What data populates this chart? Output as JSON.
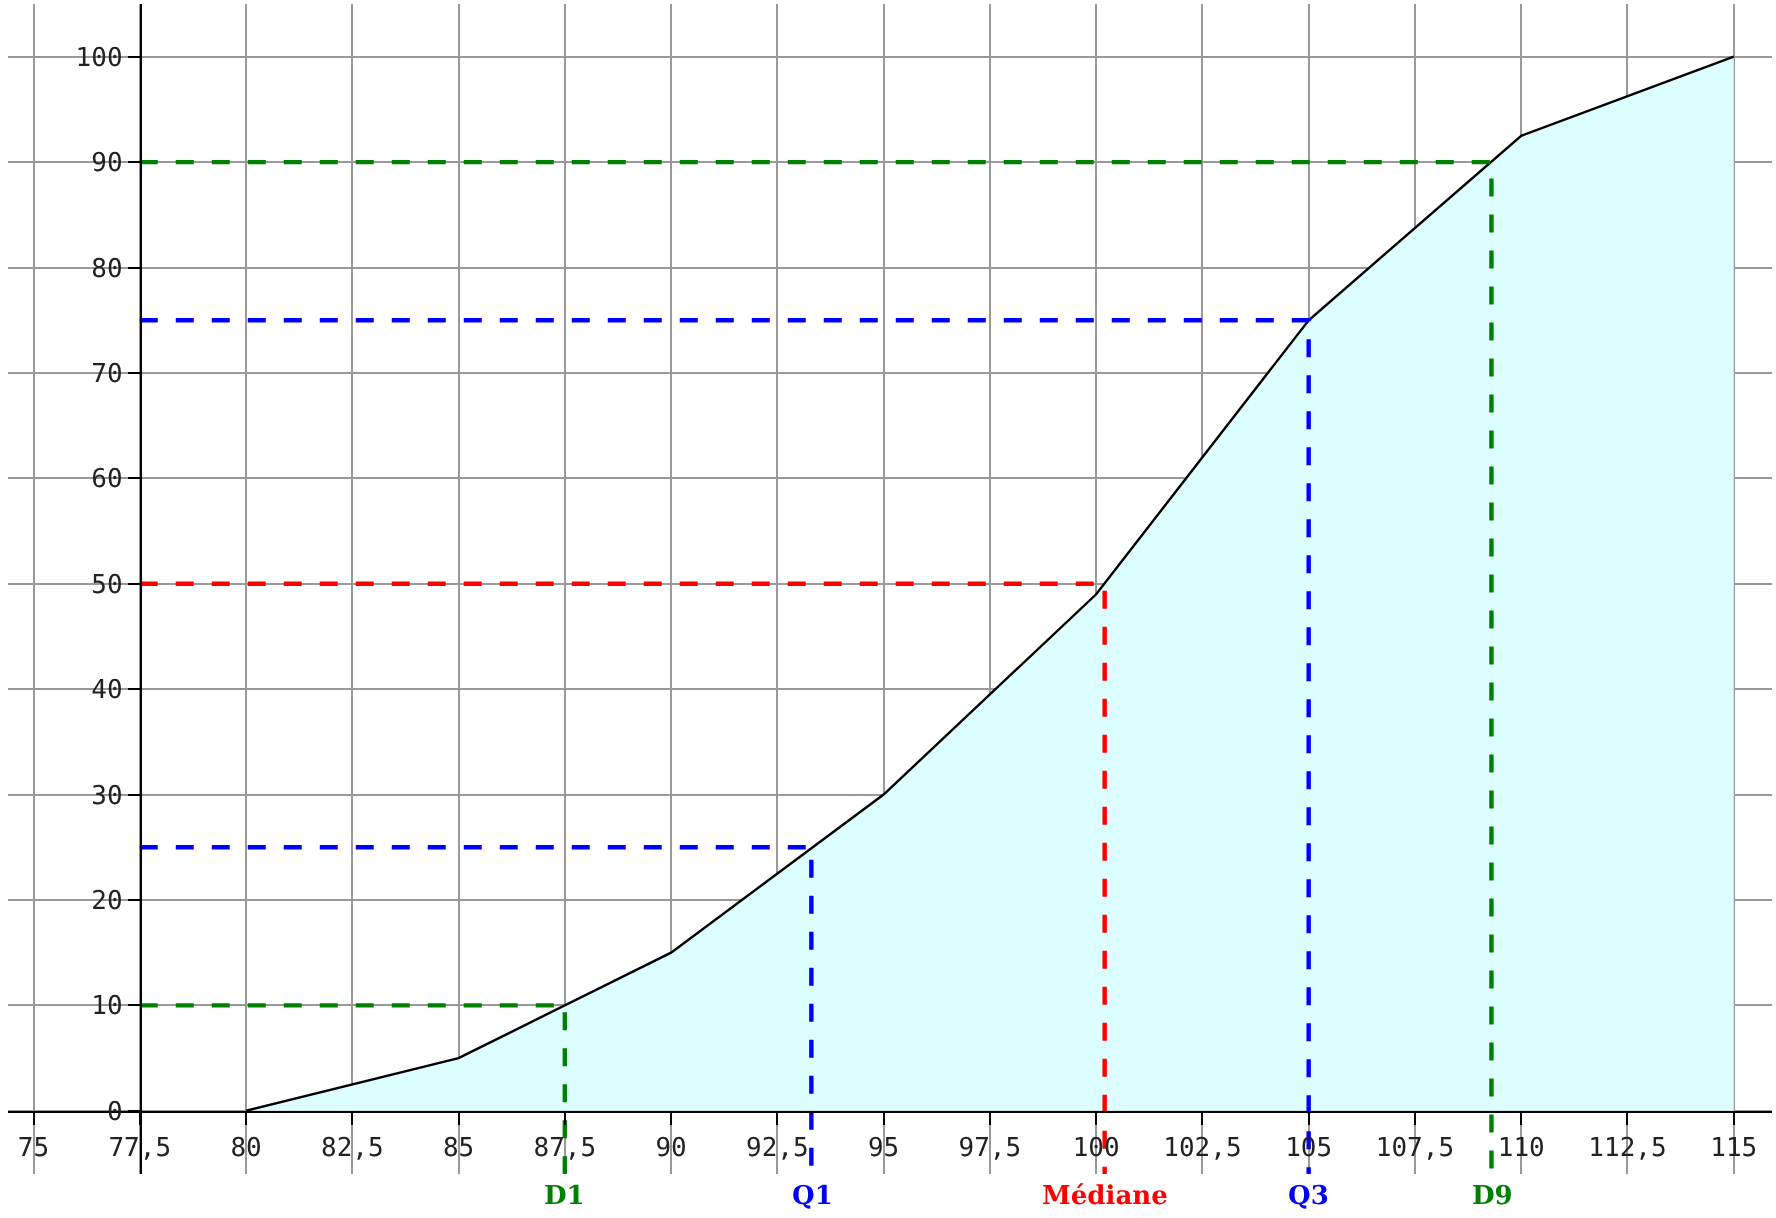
{
  "chart_data": {
    "type": "area",
    "x": [
      80,
      85,
      90,
      95,
      100,
      105,
      110,
      115
    ],
    "series": [
      {
        "color": "#dcfefe",
        "values": [
          0,
          5,
          15,
          30,
          49,
          75,
          92.5,
          100
        ]
      },
      {
        "type": "line",
        "name": "D1",
        "color": "#008000",
        "line_style": "dashed",
        "x": [
          77.5,
          87.5,
          87.5
        ],
        "values": [
          10,
          10,
          -6
        ]
      },
      {
        "type": "line",
        "name": "Q1",
        "color": "#0000ff",
        "line_style": "dashed",
        "x": [
          77.5,
          93.3,
          93.3
        ],
        "values": [
          25,
          25,
          -6
        ]
      },
      {
        "type": "line",
        "name": "Médiane",
        "color": "#ff0000",
        "line_style": "dashed",
        "x": [
          77.5,
          100.2,
          100.2
        ],
        "values": [
          50,
          50,
          -6
        ]
      },
      {
        "type": "line",
        "name": "Q3",
        "color": "#0000ff",
        "line_style": "dashed",
        "x": [
          77.5,
          105,
          105
        ],
        "values": [
          75,
          75,
          -6
        ]
      },
      {
        "type": "line",
        "name": "D9",
        "color": "#008000",
        "line_style": "dashed",
        "x": [
          77.5,
          109.3,
          109.3
        ],
        "values": [
          90,
          90,
          -6
        ]
      }
    ],
    "xlim": [
      74.4,
      115.9
    ],
    "ylim": [
      -6,
      105
    ],
    "xticks": [
      75,
      {
        "value": 77.5,
        "label": "77,5"
      },
      80,
      {
        "value": 82.5,
        "label": "82,5"
      },
      85,
      {
        "value": 87.5,
        "label": "87,5"
      },
      90,
      {
        "value": 92.5,
        "label": "92,5"
      },
      95,
      {
        "value": 97.5,
        "label": "97,5"
      },
      100,
      {
        "value": 102.5,
        "label": "102,5"
      },
      105,
      {
        "value": 107.5,
        "label": "107,5"
      },
      110,
      {
        "value": 112.5,
        "label": "112,5"
      },
      115
    ],
    "yticks": [
      0,
      10,
      20,
      30,
      40,
      50,
      60,
      70,
      80,
      90,
      100
    ],
    "grid": true
  }
}
